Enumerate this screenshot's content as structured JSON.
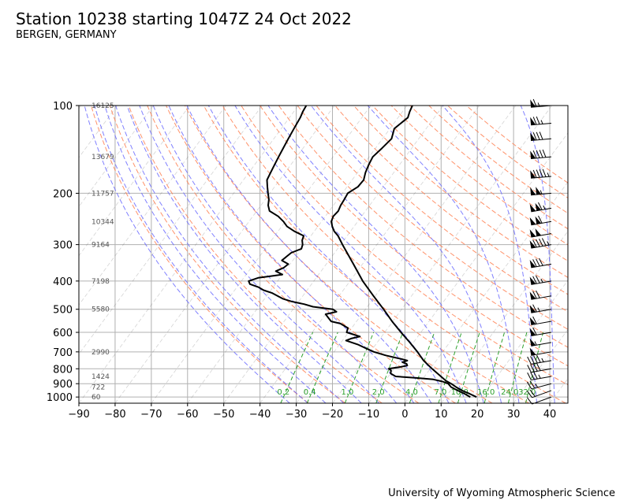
{
  "header": {
    "title": "Station 10238 starting 1047Z 24 Oct 2022",
    "subtitle": "BERGEN, GERMANY"
  },
  "footer": {
    "credit": "University of Wyoming Atmospheric Science"
  },
  "chart_data": {
    "type": "line",
    "plot_kind": "skew-T log-P sounding",
    "x_axis": {
      "label": "",
      "range": [
        -90,
        45
      ],
      "ticks": [
        -90,
        -80,
        -70,
        -60,
        -50,
        -40,
        -30,
        -20,
        -10,
        0,
        10,
        20,
        30,
        40
      ]
    },
    "y_axis": {
      "label": "",
      "scale": "log",
      "range": [
        1050,
        100
      ],
      "ticks": [
        100,
        200,
        300,
        400,
        500,
        600,
        700,
        800,
        900,
        1000
      ]
    },
    "grid": true,
    "height_labels": [
      {
        "p": 100,
        "label": "16125"
      },
      {
        "p": 150,
        "label": "13679"
      },
      {
        "p": 200,
        "label": "11757"
      },
      {
        "p": 250,
        "label": "10344"
      },
      {
        "p": 300,
        "label": "9164"
      },
      {
        "p": 400,
        "label": "7198"
      },
      {
        "p": 500,
        "label": "5580"
      },
      {
        "p": 700,
        "label": "2990"
      },
      {
        "p": 850,
        "label": "1424"
      },
      {
        "p": 925,
        "label": "722"
      },
      {
        "p": 1000,
        "label": "60"
      }
    ],
    "mixing_ratio_labels": [
      "0.2",
      "0.4",
      "1.0",
      "2.0",
      "4.0",
      "7.0",
      "10.0",
      "16.0",
      "24.0",
      "32.0"
    ],
    "mixing_ratio_values": [
      0.2,
      0.4,
      1.0,
      2.0,
      4.0,
      7.0,
      10.0,
      16.0,
      24.0,
      32.0
    ],
    "colors": {
      "grid": "#b0b0b0",
      "isotherm": "#555555",
      "dry_adiabat": "#ff7f50",
      "moist_adiabat": "#6a6aff",
      "mixing_ratio": "#2ca02c",
      "sounding": "#000000",
      "height_label": "#555555"
    },
    "series": [
      {
        "key": "temperature",
        "values": [
          [
            1000,
            18.5
          ],
          [
            975,
            16.0
          ],
          [
            950,
            13.2
          ],
          [
            925,
            10.9
          ],
          [
            900,
            8.8
          ],
          [
            880,
            6.8
          ],
          [
            850,
            4.5
          ],
          [
            800,
            0.5
          ],
          [
            750,
            -3.5
          ],
          [
            700,
            -7.0
          ],
          [
            650,
            -11.0
          ],
          [
            600,
            -15.5
          ],
          [
            550,
            -20.2
          ],
          [
            500,
            -25.0
          ],
          [
            450,
            -30.5
          ],
          [
            400,
            -36.5
          ],
          [
            350,
            -42.5
          ],
          [
            300,
            -49.5
          ],
          [
            280,
            -52.5
          ],
          [
            270,
            -54.5
          ],
          [
            260,
            -56.0
          ],
          [
            250,
            -57.3
          ],
          [
            240,
            -57.8
          ],
          [
            230,
            -57.5
          ],
          [
            220,
            -58.0
          ],
          [
            210,
            -58.2
          ],
          [
            200,
            -58.5
          ],
          [
            190,
            -57.0
          ],
          [
            180,
            -56.8
          ],
          [
            170,
            -57.8
          ],
          [
            160,
            -58.5
          ],
          [
            150,
            -59.0
          ],
          [
            140,
            -58.2
          ],
          [
            130,
            -57.5
          ],
          [
            120,
            -58.8
          ],
          [
            110,
            -57.3
          ],
          [
            105,
            -58.0
          ],
          [
            100,
            -58.5
          ]
        ]
      },
      {
        "key": "dewpoint",
        "values": [
          [
            1000,
            16.8
          ],
          [
            975,
            14.6
          ],
          [
            950,
            12.0
          ],
          [
            925,
            9.5
          ],
          [
            900,
            8.0
          ],
          [
            885,
            6.0
          ],
          [
            870,
            3.0
          ],
          [
            860,
            -2.0
          ],
          [
            850,
            -8.0
          ],
          [
            840,
            -9.0
          ],
          [
            830,
            -10.0
          ],
          [
            810,
            -10.5
          ],
          [
            800,
            -11.5
          ],
          [
            790,
            -9.0
          ],
          [
            780,
            -7.0
          ],
          [
            770,
            -7.5
          ],
          [
            760,
            -9.0
          ],
          [
            750,
            -8.0
          ],
          [
            740,
            -10.0
          ],
          [
            730,
            -12.5
          ],
          [
            720,
            -15.0
          ],
          [
            700,
            -19.0
          ],
          [
            680,
            -22.0
          ],
          [
            660,
            -25.0
          ],
          [
            650,
            -27.0
          ],
          [
            640,
            -29.0
          ],
          [
            630,
            -28.0
          ],
          [
            620,
            -26.0
          ],
          [
            600,
            -30.5
          ],
          [
            580,
            -31.0
          ],
          [
            560,
            -34.0
          ],
          [
            550,
            -37.0
          ],
          [
            540,
            -38.0
          ],
          [
            520,
            -40.0
          ],
          [
            510,
            -37.5
          ],
          [
            500,
            -39.0
          ],
          [
            490,
            -45.0
          ],
          [
            480,
            -48.0
          ],
          [
            470,
            -52.0
          ],
          [
            460,
            -55.0
          ],
          [
            450,
            -57.0
          ],
          [
            440,
            -59.0
          ],
          [
            430,
            -62.0
          ],
          [
            420,
            -64.0
          ],
          [
            410,
            -67.0
          ],
          [
            400,
            -68.0
          ],
          [
            390,
            -66.0
          ],
          [
            385,
            -63.0
          ],
          [
            380,
            -60.0
          ],
          [
            370,
            -62.5
          ],
          [
            360,
            -61.0
          ],
          [
            350,
            -60.5
          ],
          [
            340,
            -63.0
          ],
          [
            330,
            -62.5
          ],
          [
            320,
            -62.0
          ],
          [
            310,
            -60.0
          ],
          [
            300,
            -60.5
          ],
          [
            290,
            -61.5
          ],
          [
            280,
            -62.0
          ],
          [
            270,
            -65.5
          ],
          [
            260,
            -68.5
          ],
          [
            250,
            -70.5
          ],
          [
            240,
            -73.0
          ],
          [
            230,
            -76.5
          ],
          [
            220,
            -78.0
          ],
          [
            210,
            -79.0
          ],
          [
            200,
            -80.5
          ],
          [
            190,
            -82.0
          ],
          [
            180,
            -83.5
          ],
          [
            170,
            -84.0
          ],
          [
            160,
            -84.5
          ],
          [
            150,
            -85.0
          ],
          [
            140,
            -85.5
          ],
          [
            130,
            -86.0
          ],
          [
            120,
            -86.5
          ],
          [
            110,
            -87.0
          ],
          [
            105,
            -87.5
          ],
          [
            100,
            -87.8
          ]
        ]
      }
    ],
    "wind_barbs": [
      {
        "p": 1000,
        "dir": 250,
        "kt": 10
      },
      {
        "p": 950,
        "dir": 250,
        "kt": 20
      },
      {
        "p": 900,
        "dir": 255,
        "kt": 25
      },
      {
        "p": 850,
        "dir": 260,
        "kt": 35
      },
      {
        "p": 800,
        "dir": 260,
        "kt": 40
      },
      {
        "p": 750,
        "dir": 260,
        "kt": 45
      },
      {
        "p": 700,
        "dir": 260,
        "kt": 50
      },
      {
        "p": 650,
        "dir": 260,
        "kt": 55
      },
      {
        "p": 600,
        "dir": 260,
        "kt": 60
      },
      {
        "p": 550,
        "dir": 260,
        "kt": 60
      },
      {
        "p": 500,
        "dir": 260,
        "kt": 65
      },
      {
        "p": 450,
        "dir": 260,
        "kt": 70
      },
      {
        "p": 400,
        "dir": 260,
        "kt": 75
      },
      {
        "p": 350,
        "dir": 260,
        "kt": 80
      },
      {
        "p": 300,
        "dir": 260,
        "kt": 95
      },
      {
        "p": 275,
        "dir": 260,
        "kt": 100
      },
      {
        "p": 250,
        "dir": 260,
        "kt": 110
      },
      {
        "p": 225,
        "dir": 260,
        "kt": 115
      },
      {
        "p": 200,
        "dir": 265,
        "kt": 105
      },
      {
        "p": 175,
        "dir": 265,
        "kt": 95
      },
      {
        "p": 150,
        "dir": 265,
        "kt": 90
      },
      {
        "p": 130,
        "dir": 265,
        "kt": 80
      },
      {
        "p": 115,
        "dir": 265,
        "kt": 75
      },
      {
        "p": 100,
        "dir": 265,
        "kt": 65
      }
    ]
  }
}
